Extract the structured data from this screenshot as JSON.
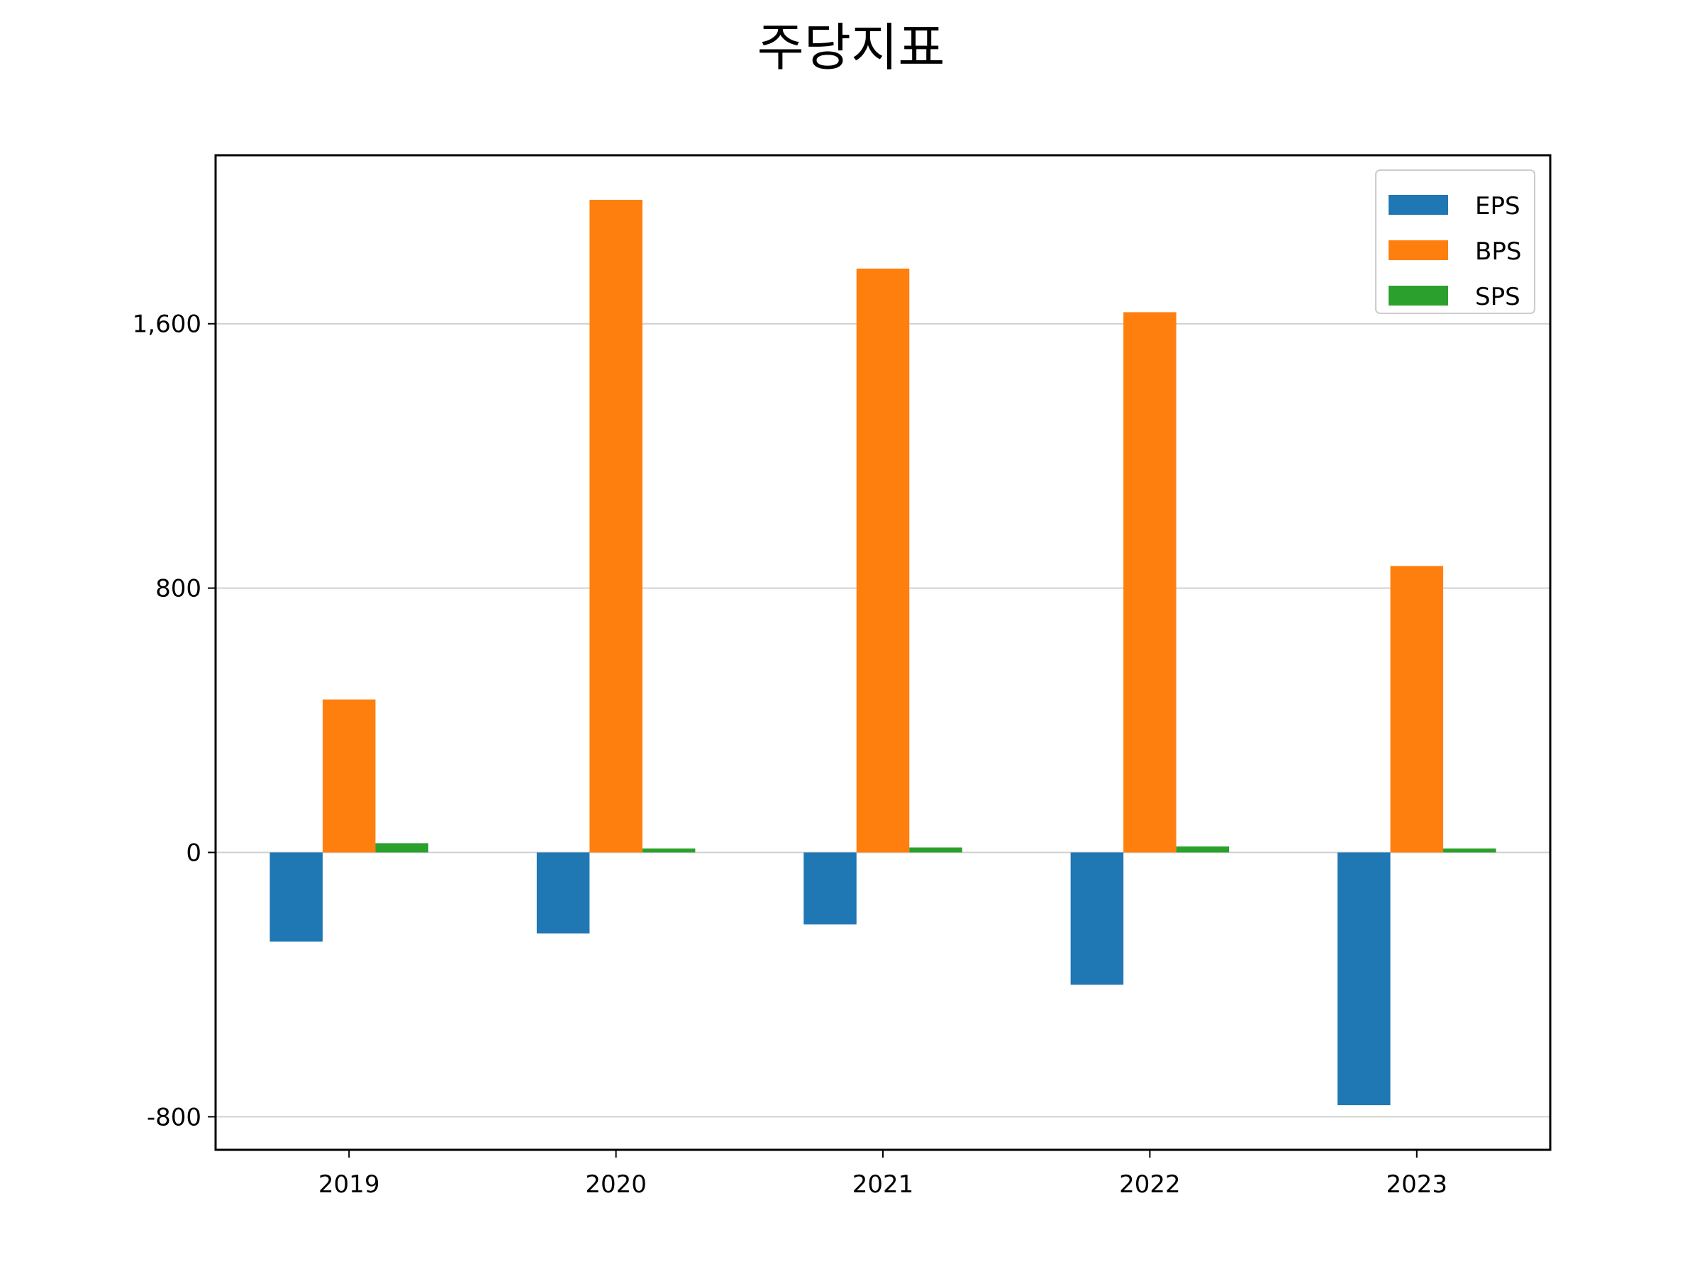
{
  "chart_data": {
    "type": "bar",
    "title": "주당지표",
    "xlabel": "",
    "ylabel": "",
    "categories": [
      "2019",
      "2020",
      "2021",
      "2022",
      "2023"
    ],
    "series": [
      {
        "name": "EPS",
        "color": "#1f77b4",
        "values": [
          -270,
          -245,
          -218,
          -400,
          -765
        ]
      },
      {
        "name": "BPS",
        "color": "#ff7f0e",
        "values": [
          463,
          1975,
          1767,
          1635,
          867
        ]
      },
      {
        "name": "SPS",
        "color": "#2ca02c",
        "values": [
          28,
          12,
          15,
          18,
          12
        ]
      }
    ],
    "ylim": [
      -900,
      2110
    ],
    "yticks": [
      -800,
      0,
      800,
      1600
    ],
    "ytick_labels": [
      "-800",
      "0",
      "800",
      "1,600"
    ],
    "grid": "y",
    "legend_position": "top-right"
  }
}
